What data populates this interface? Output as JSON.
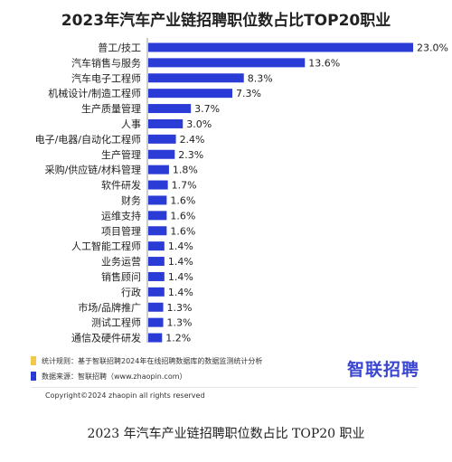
{
  "header": {
    "title": "2023年汽车产业链招聘职位数占比TOP20职业"
  },
  "chart_data": {
    "type": "bar",
    "orientation": "horizontal",
    "title": "2023年汽车产业链招聘职位数占比TOP20职业",
    "categories": [
      "普工/技工",
      "汽车销售与服务",
      "汽车电子工程师",
      "机械设计/制造工程师",
      "生产质量管理",
      "人事",
      "电子/电器/自动化工程师",
      "生产管理",
      "采购/供应链/材料管理",
      "软件研发",
      "财务",
      "运维支持",
      "项目管理",
      "人工智能工程师",
      "业务运营",
      "销售顾问",
      "行政",
      "市场/品牌推广",
      "测试工程师",
      "通信及硬件研发"
    ],
    "values": [
      23.0,
      13.6,
      8.3,
      7.3,
      3.7,
      3.0,
      2.4,
      2.3,
      1.8,
      1.7,
      1.6,
      1.6,
      1.6,
      1.4,
      1.4,
      1.4,
      1.4,
      1.3,
      1.3,
      1.2
    ],
    "value_labels": [
      "23.0%",
      "13.6%",
      "8.3%",
      "7.3%",
      "3.7%",
      "3.0%",
      "2.4%",
      "2.3%",
      "1.8%",
      "1.7%",
      "1.6%",
      "1.6%",
      "1.6%",
      "1.4%",
      "1.4%",
      "1.4%",
      "1.4%",
      "1.3%",
      "1.3%",
      "1.2%"
    ],
    "xlim": [
      0,
      23.0
    ],
    "bar_color": "#2a3bd6",
    "grid": false,
    "legend": "none"
  },
  "legend": {
    "items": [
      {
        "label": "统计规则：基于智联招聘2024年在线招聘数据库的数据监测统计分析",
        "color": "#f2c84b"
      },
      {
        "label": "数据来源：智联招聘（www.zhaopin.com）",
        "color": "#2a3bd6"
      }
    ]
  },
  "brand": {
    "name": "智联招聘",
    "color": "#3a45d0"
  },
  "footer": {
    "copyright": "Copyright©2024 zhaopin all rights reserved",
    "caption": "2023 年汽车产业链招聘职位数占比 TOP20 职业"
  }
}
